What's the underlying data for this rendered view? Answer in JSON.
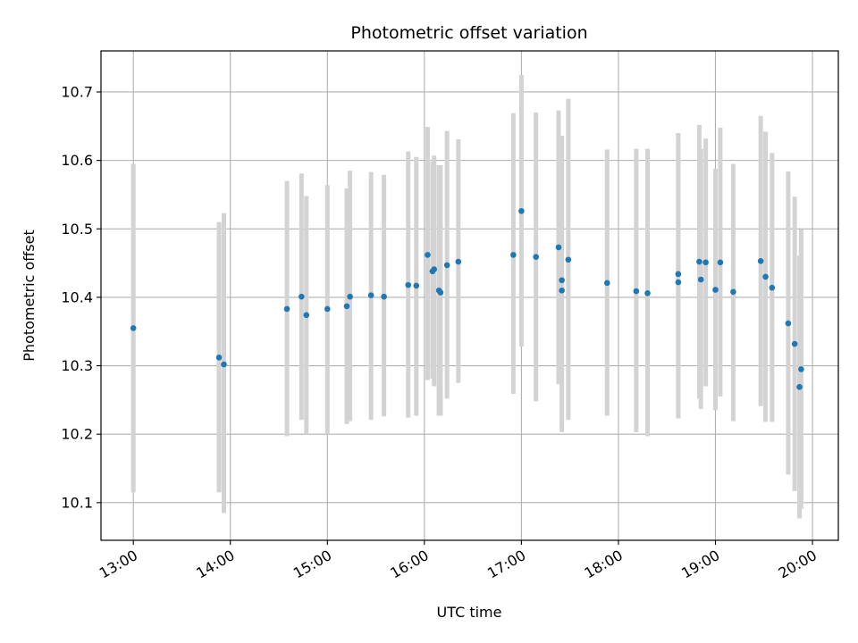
{
  "chart_data": {
    "type": "scatter",
    "title": "Photometric offset variation",
    "xlabel": "UTC time",
    "ylabel": "Photometric offset",
    "grid": true,
    "xlim": [
      "12:40",
      "20:16"
    ],
    "ylim": [
      10.045,
      10.76
    ],
    "xticks": [
      "13:00",
      "14:00",
      "15:00",
      "16:00",
      "17:00",
      "18:00",
      "19:00",
      "20:00"
    ],
    "yticks": [
      "10.1",
      "10.2",
      "10.3",
      "10.4",
      "10.5",
      "10.6",
      "10.7"
    ],
    "colors": {
      "points": "#1f77b4",
      "errorbars": "#d3d3d3",
      "grid": "#b0b0b0"
    },
    "x": [
      "13:00",
      "13:53",
      "13:56",
      "14:35",
      "14:44",
      "14:47",
      "15:00",
      "15:12",
      "15:14",
      "15:27",
      "15:35",
      "15:50",
      "15:55",
      "16:02",
      "16:05",
      "16:06",
      "16:09",
      "16:10",
      "16:14",
      "16:21",
      "16:55",
      "17:00",
      "17:09",
      "17:23",
      "17:25",
      "17:25",
      "17:29",
      "17:53",
      "18:11",
      "18:18",
      "18:37",
      "18:37",
      "18:50",
      "18:51",
      "18:54",
      "19:00",
      "19:03",
      "19:11",
      "19:28",
      "19:31",
      "19:35",
      "19:45",
      "19:49",
      "19:52",
      "19:53"
    ],
    "y": [
      10.355,
      10.312,
      10.302,
      10.383,
      10.401,
      10.374,
      10.383,
      10.387,
      10.401,
      10.403,
      10.401,
      10.418,
      10.417,
      10.462,
      10.438,
      10.441,
      10.41,
      10.407,
      10.447,
      10.452,
      10.462,
      10.526,
      10.459,
      10.473,
      10.41,
      10.425,
      10.455,
      10.421,
      10.409,
      10.406,
      10.422,
      10.434,
      10.452,
      10.426,
      10.451,
      10.411,
      10.451,
      10.408,
      10.453,
      10.43,
      10.414,
      10.362,
      10.332,
      10.269,
      10.295
    ],
    "ylow": [
      10.115,
      10.115,
      10.085,
      10.197,
      10.221,
      10.2,
      10.2,
      10.215,
      10.219,
      10.221,
      10.226,
      10.224,
      10.227,
      10.279,
      10.281,
      10.27,
      10.227,
      10.227,
      10.252,
      10.275,
      10.259,
      10.328,
      10.248,
      10.273,
      10.203,
      10.217,
      10.221,
      10.227,
      10.203,
      10.197,
      10.223,
      10.232,
      10.252,
      10.237,
      10.27,
      10.235,
      10.255,
      10.219,
      10.241,
      10.218,
      10.218,
      10.141,
      10.117,
      10.077,
      10.091
    ],
    "yhigh": [
      10.595,
      10.51,
      10.523,
      10.57,
      10.581,
      10.548,
      10.564,
      10.559,
      10.585,
      10.583,
      10.579,
      10.613,
      10.605,
      10.649,
      10.598,
      10.607,
      10.593,
      10.593,
      10.643,
      10.631,
      10.669,
      10.725,
      10.67,
      10.673,
      10.636,
      10.635,
      10.69,
      10.616,
      10.617,
      10.617,
      10.625,
      10.64,
      10.652,
      10.617,
      10.632,
      10.588,
      10.648,
      10.595,
      10.665,
      10.642,
      10.611,
      10.584,
      10.547,
      10.461,
      10.499
    ]
  }
}
